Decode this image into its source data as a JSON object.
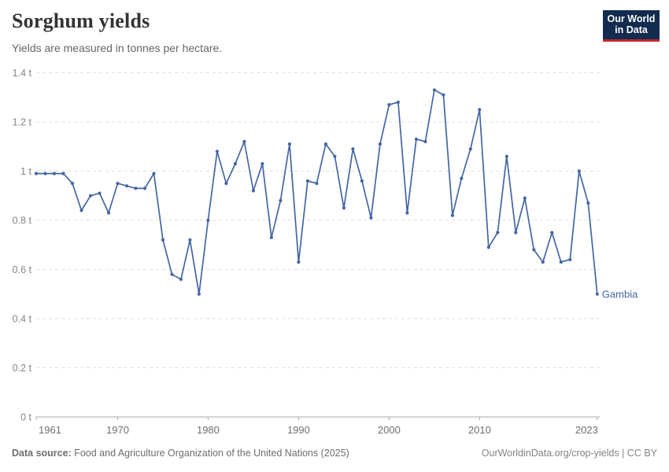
{
  "header": {
    "title": "Sorghum yields",
    "subtitle": "Yields are measured in tonnes per hectare."
  },
  "logo": {
    "line1": "Our World",
    "line2": "in Data",
    "bg_color": "#122b4e",
    "accent_color": "#c5292f"
  },
  "chart_data": {
    "type": "line",
    "title": "Sorghum yields",
    "subtitle": "Yields are measured in tonnes per hectare.",
    "unit": "t",
    "xlim": [
      1961,
      2023
    ],
    "ylim": [
      0,
      1.4
    ],
    "grid": "horizontal-dashed",
    "legend_position": "end-of-line-label",
    "x_ticks": [
      1961,
      1970,
      1980,
      1990,
      2000,
      2010,
      2023
    ],
    "y_ticks": [
      0,
      0.2,
      0.4,
      0.6,
      0.8,
      1,
      1.2,
      1.4
    ],
    "y_tick_labels": [
      "0 t",
      "0.2 t",
      "0.4 t",
      "0.6 t",
      "0.8 t",
      "1 t",
      "1.2 t",
      "1.4 t"
    ],
    "series": [
      {
        "name": "Gambia",
        "color": "#4566a3",
        "x": [
          1961,
          1962,
          1963,
          1964,
          1965,
          1966,
          1967,
          1968,
          1969,
          1970,
          1971,
          1972,
          1973,
          1974,
          1975,
          1976,
          1977,
          1978,
          1979,
          1980,
          1981,
          1982,
          1983,
          1984,
          1985,
          1986,
          1987,
          1988,
          1989,
          1990,
          1991,
          1992,
          1993,
          1994,
          1995,
          1996,
          1997,
          1998,
          1999,
          2000,
          2001,
          2002,
          2003,
          2004,
          2005,
          2006,
          2007,
          2008,
          2009,
          2010,
          2011,
          2012,
          2013,
          2014,
          2015,
          2016,
          2017,
          2018,
          2019,
          2020,
          2021,
          2022,
          2023
        ],
        "values": [
          0.99,
          0.99,
          0.99,
          0.99,
          0.95,
          0.84,
          0.9,
          0.91,
          0.83,
          0.95,
          0.94,
          0.93,
          0.93,
          0.99,
          0.72,
          0.58,
          0.56,
          0.72,
          0.5,
          0.8,
          1.08,
          0.95,
          1.03,
          1.12,
          0.92,
          1.03,
          0.73,
          0.88,
          1.11,
          0.63,
          0.96,
          0.95,
          1.11,
          1.06,
          0.85,
          1.09,
          0.96,
          0.81,
          1.11,
          1.27,
          1.28,
          0.83,
          1.13,
          1.12,
          1.33,
          1.31,
          0.82,
          0.97,
          1.09,
          1.25,
          0.69,
          0.75,
          1.06,
          0.75,
          0.89,
          0.68,
          0.63,
          0.75,
          0.63,
          0.64,
          1.0,
          0.87,
          0.5
        ]
      }
    ]
  },
  "footer": {
    "source_label": "Data source:",
    "source_text": "Food and Agriculture Organization of the United Nations (2025)",
    "right_text": "OurWorldinData.org/crop-yields | CC BY"
  }
}
